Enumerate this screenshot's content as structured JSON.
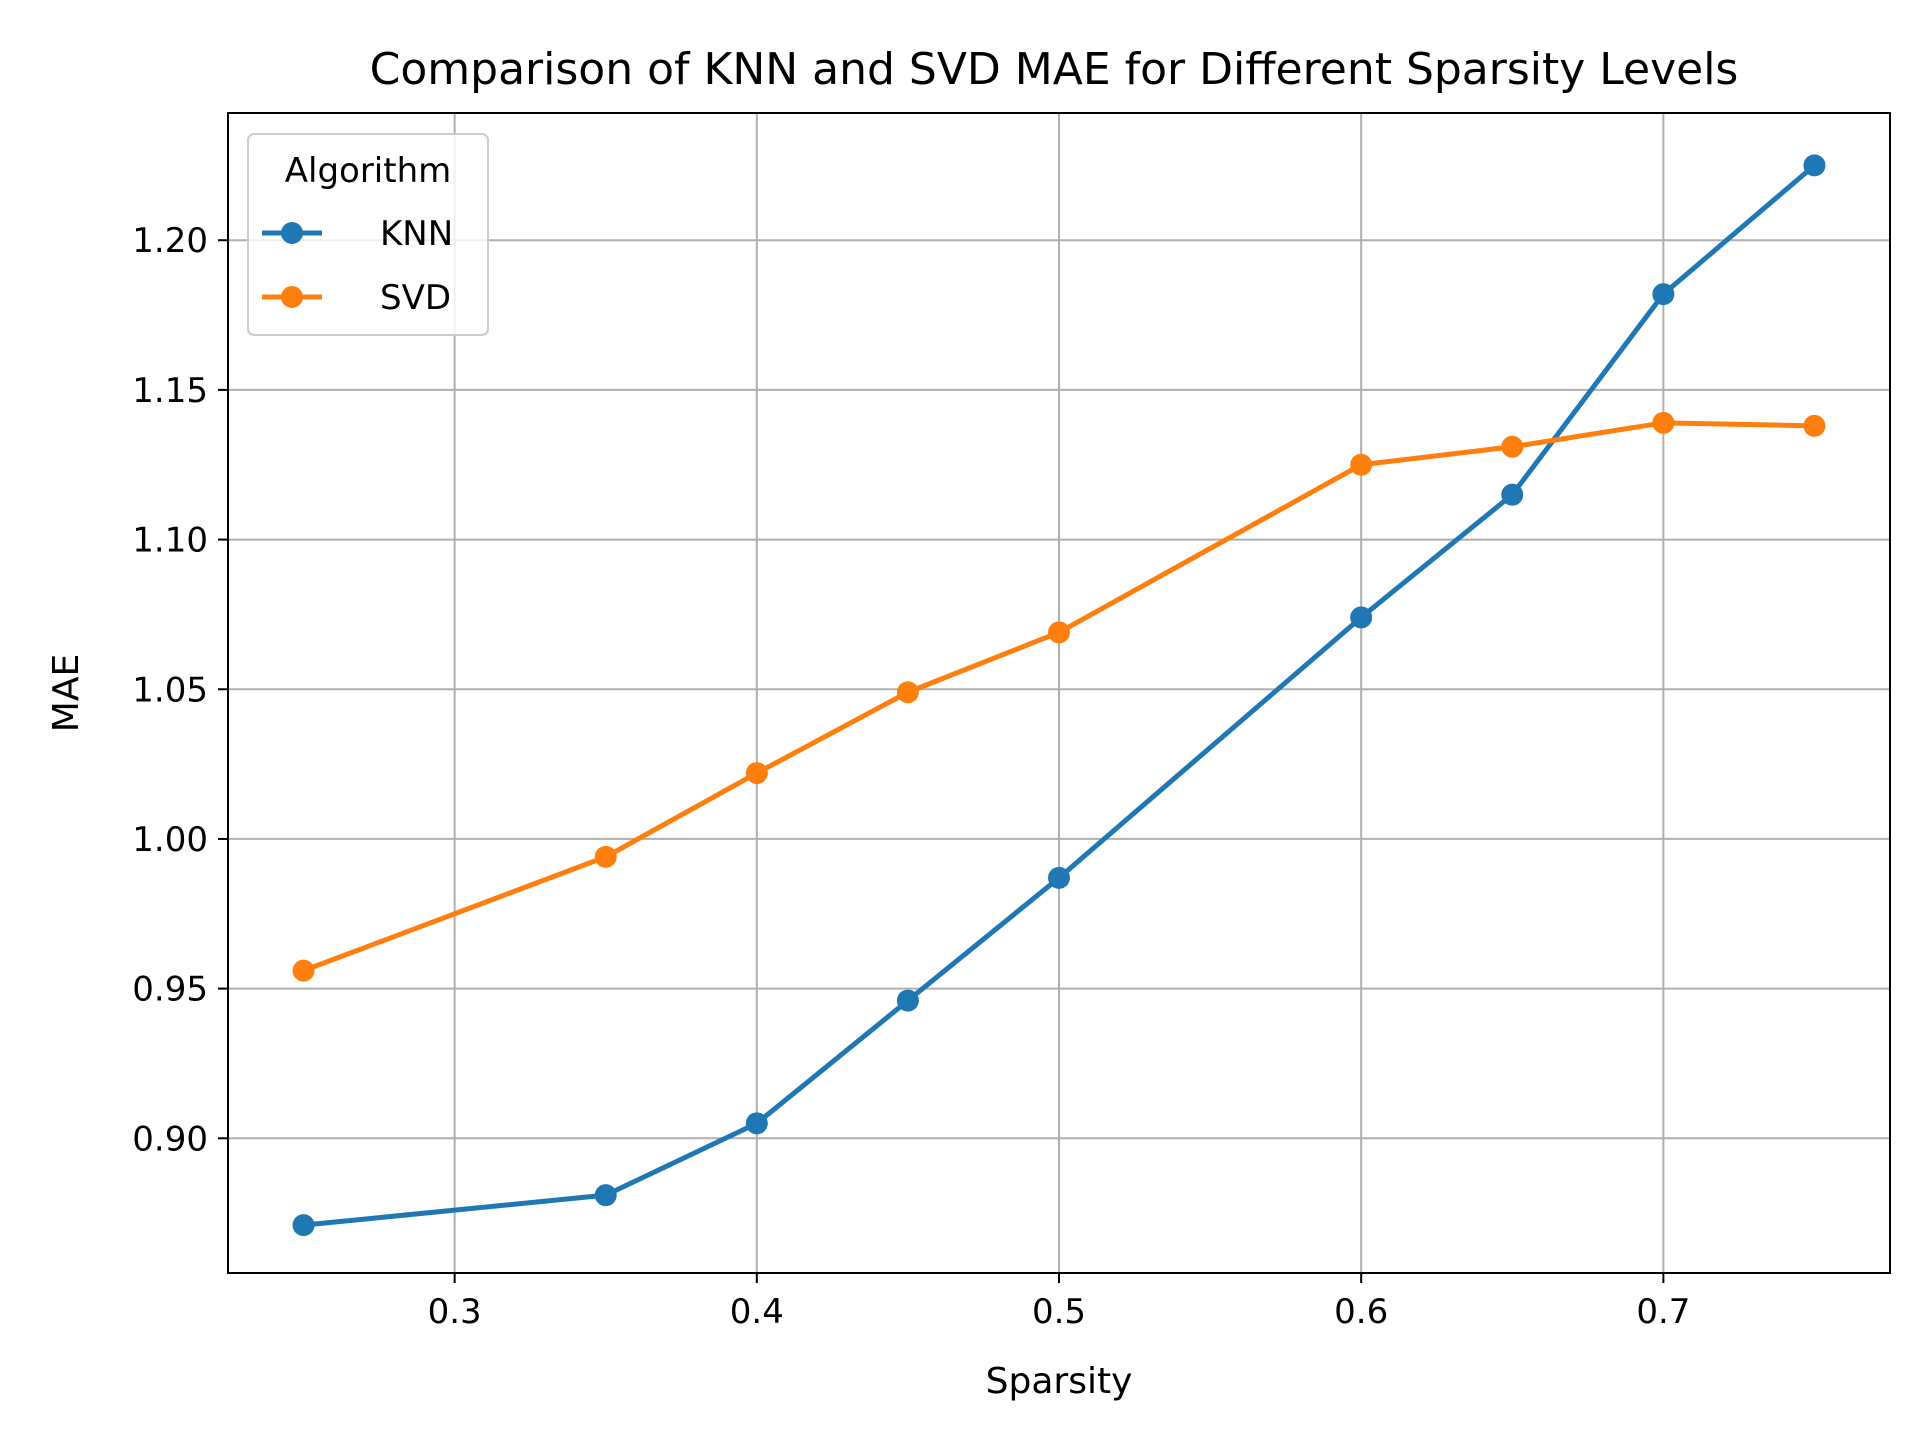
{
  "chart_data": {
    "type": "line",
    "title": "Comparison of KNN and SVD MAE for Different Sparsity Levels",
    "xlabel": "Sparsity",
    "ylabel": "MAE",
    "xlim": [
      0.225,
      0.775
    ],
    "ylim": [
      0.855,
      1.2425
    ],
    "xticks": [
      0.3,
      0.4,
      0.5,
      0.6,
      0.7
    ],
    "xtick_labels": [
      "0.3",
      "0.4",
      "0.5",
      "0.6",
      "0.7"
    ],
    "yticks": [
      0.9,
      0.95,
      1.0,
      1.05,
      1.1,
      1.15,
      1.2
    ],
    "ytick_labels": [
      "0.90",
      "0.95",
      "1.00",
      "1.05",
      "1.10",
      "1.15",
      "1.20"
    ],
    "grid": true,
    "legend": {
      "title": "Algorithm",
      "placement": "top-left"
    },
    "x": [
      0.25,
      0.35,
      0.4,
      0.45,
      0.5,
      0.6,
      0.65,
      0.7,
      0.75
    ],
    "series": [
      {
        "name": "KNN",
        "color": "#1f77b4",
        "values": [
          0.871,
          0.881,
          0.905,
          0.946,
          0.987,
          1.074,
          1.115,
          1.182,
          1.225
        ]
      },
      {
        "name": "SVD",
        "color": "#ff7f0e",
        "values": [
          0.956,
          0.994,
          1.022,
          1.049,
          1.069,
          1.125,
          1.131,
          1.139,
          1.138
        ]
      }
    ]
  }
}
